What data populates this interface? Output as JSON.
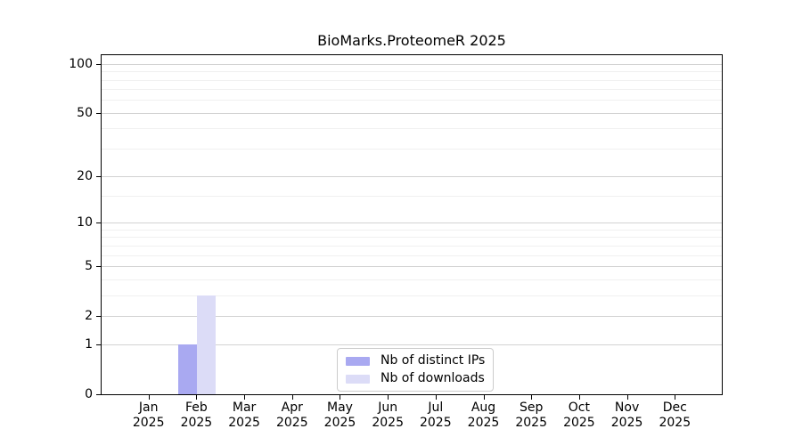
{
  "title": "BioMarks.ProteomeR 2025",
  "chart_data": {
    "type": "bar",
    "title": "BioMarks.ProteomeR 2025",
    "categories": [
      "Jan",
      "Feb",
      "Mar",
      "Apr",
      "May",
      "Jun",
      "Jul",
      "Aug",
      "Sep",
      "Oct",
      "Nov",
      "Dec"
    ],
    "year": "2025",
    "series": [
      {
        "name": "Nb of distinct IPs",
        "color": "#a9a9f1",
        "values": [
          0,
          1,
          0,
          0,
          0,
          0,
          0,
          0,
          0,
          0,
          0,
          0
        ]
      },
      {
        "name": "Nb of downloads",
        "color": "#dcdcf7",
        "values": [
          0,
          3,
          0,
          0,
          0,
          0,
          0,
          0,
          0,
          0,
          0,
          0
        ]
      }
    ],
    "xlabel": "",
    "ylabel": "",
    "yscale": "log1p",
    "ylim": [
      0,
      113
    ],
    "yticks": [
      0,
      1,
      2,
      5,
      10,
      20,
      50,
      100
    ],
    "yticks_minor": [
      3,
      4,
      6,
      7,
      8,
      9,
      15,
      30,
      40,
      60,
      70,
      80,
      90
    ],
    "grid": "horizontal",
    "legend_position": "lower center inside"
  },
  "colors": {
    "major_grid": "#d2d2d2",
    "minor_grid": "#f0f0f0",
    "axis": "#000000",
    "legend_border": "#cccccc",
    "background": "#ffffff"
  }
}
